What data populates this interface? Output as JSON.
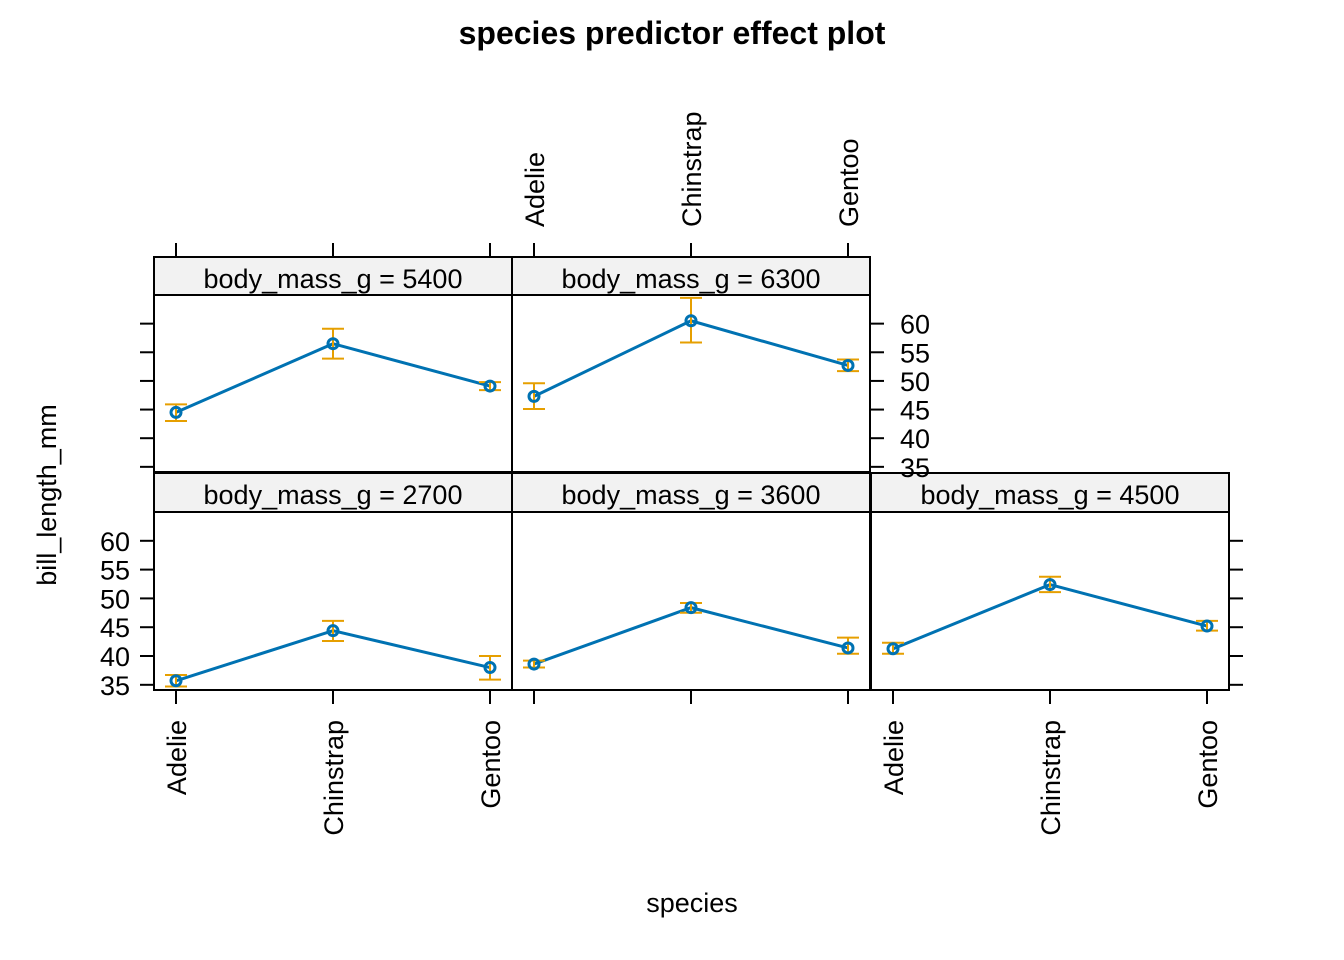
{
  "chart_data": {
    "type": "line",
    "title": "species predictor effect plot",
    "xlabel": "species",
    "ylabel": "bill_length_mm",
    "categories": [
      "Adelie",
      "Chinstrap",
      "Gentoo"
    ],
    "ylim": [
      34.1,
      65
    ],
    "yticks": [
      35,
      40,
      45,
      50,
      55,
      60
    ],
    "grid": false,
    "colors": {
      "line": "#0072B2",
      "ci": "#E69F00",
      "strip": "#F2F2F2"
    },
    "panels": [
      {
        "label": "body_mass_g = 2700",
        "fit": [
          35.7,
          44.4,
          38.0
        ],
        "lower": [
          34.7,
          42.6,
          35.9
        ],
        "upper": [
          36.7,
          46.1,
          40.0
        ]
      },
      {
        "label": "body_mass_g = 3600",
        "fit": [
          38.6,
          48.4,
          41.4
        ],
        "lower": [
          38.0,
          47.5,
          40.4
        ],
        "upper": [
          39.2,
          49.2,
          43.2
        ]
      },
      {
        "label": "body_mass_g = 4500",
        "fit": [
          41.25,
          52.4,
          45.2
        ],
        "lower": [
          40.4,
          51.1,
          44.4
        ],
        "upper": [
          42.3,
          53.75,
          46.1
        ]
      },
      {
        "label": "body_mass_g = 5400",
        "fit": [
          44.5,
          56.5,
          49.1
        ],
        "lower": [
          43.0,
          53.9,
          48.4
        ],
        "upper": [
          45.9,
          59.1,
          49.8
        ]
      },
      {
        "label": "body_mass_g = 6300",
        "fit": [
          47.3,
          60.5,
          52.7
        ],
        "lower": [
          45.1,
          56.7,
          51.7
        ],
        "upper": [
          49.6,
          64.5,
          53.75
        ]
      }
    ]
  }
}
